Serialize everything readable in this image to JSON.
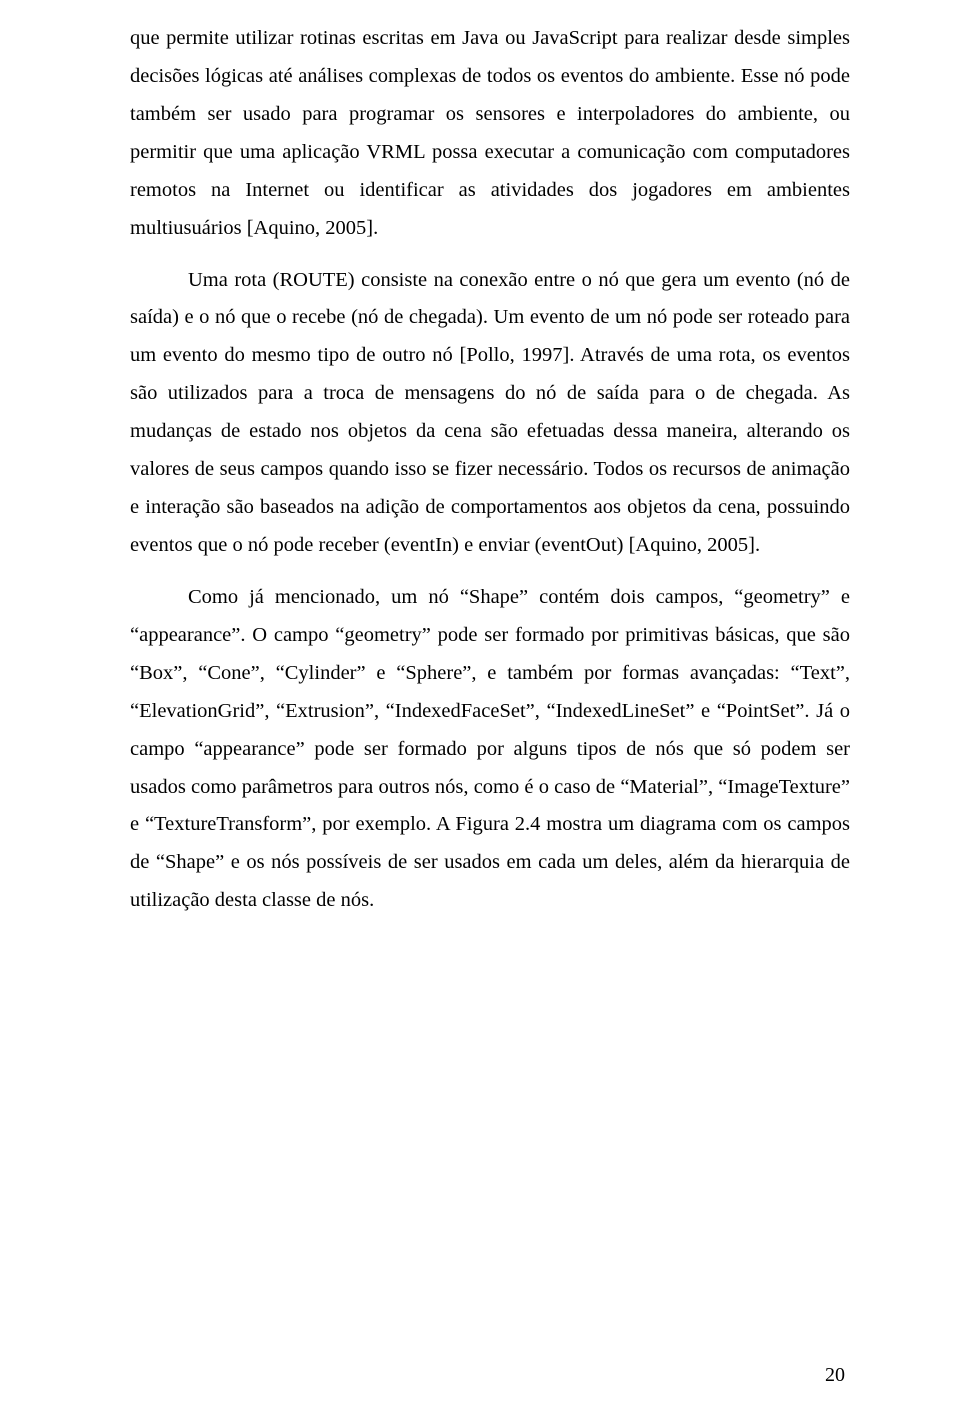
{
  "page": {
    "number": "20"
  },
  "paragraphs": {
    "p1": "que permite utilizar rotinas escritas em Java ou JavaScript para realizar desde simples decisões lógicas até análises complexas de todos os eventos do ambiente. Esse nó pode também ser usado para programar os sensores e interpoladores do ambiente, ou permitir que uma aplicação VRML possa executar a comunicação com computadores remotos na Internet ou identificar as atividades dos jogadores em ambientes multiusuários [Aquino, 2005].",
    "p2": "Uma rota (ROUTE) consiste na conexão entre o nó que gera um evento (nó de saída) e o nó que o recebe (nó de chegada). Um evento de um nó pode ser roteado para um evento do mesmo tipo de outro nó [Pollo, 1997]. Através de uma rota, os eventos são utilizados para a troca de mensagens do nó de saída para o de chegada. As mudanças de estado nos objetos da cena são efetuadas dessa maneira, alterando os valores de seus campos quando isso se fizer necessário. Todos os recursos de animação e interação são baseados na adição de comportamentos aos objetos da cena, possuindo eventos que o nó pode receber (eventIn) e enviar (eventOut) [Aquino, 2005].",
    "p3": "Como já mencionado, um nó “Shape” contém dois campos, “geometry” e “appearance”. O campo “geometry” pode ser formado por primitivas básicas, que são “Box”, “Cone”, “Cylinder” e “Sphere”, e também por formas avançadas: “Text”, “ElevationGrid”, “Extrusion”, “IndexedFaceSet”, “IndexedLineSet” e “PointSet”. Já o campo “appearance” pode ser formado por alguns tipos de nós que só podem ser usados como parâmetros para outros nós, como é o caso de “Material”, “ImageTexture” e “TextureTransform”, por exemplo. A Figura 2.4 mostra um diagrama com os campos de “Shape” e os nós possíveis de ser usados em cada um deles, além da hierarquia de utilização desta classe de nós."
  }
}
